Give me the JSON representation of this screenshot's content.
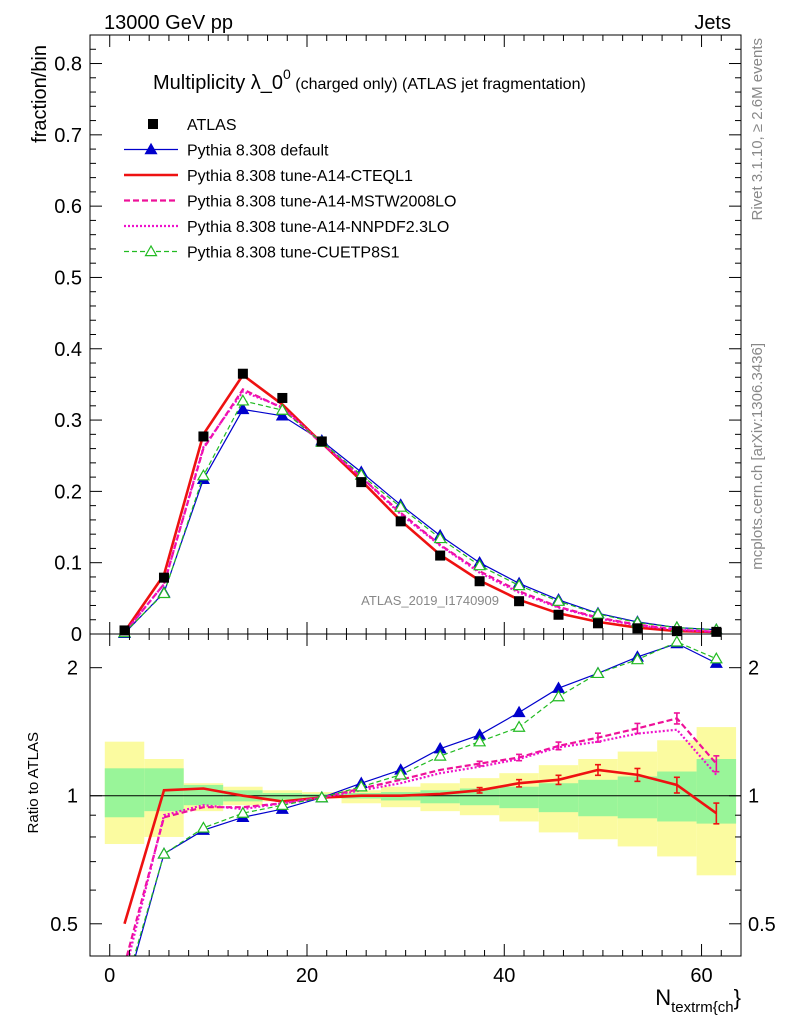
{
  "header": {
    "left": "13000 GeV pp",
    "right": "Jets"
  },
  "side_labels": {
    "top": "Rivet 3.1.10, ≥ 2.6M events",
    "bottom": "mcplots.cern.ch [arXiv:1306.3436]"
  },
  "title_main": "Multiplicity λ_0",
  "title_sup": "0",
  "title_tail": " (charged only) (ATLAS jet fragmentation)",
  "watermark": "ATLAS_2019_I1740909",
  "colors": {
    "atlas": "#000000",
    "default": "#0000cc",
    "cteql1": "#ee1111",
    "mstw": "#ee1199",
    "nnpdf": "#ee11cc",
    "cuetp": "#22bb22",
    "band_inner": "#99f599",
    "band_outer": "#fbfba0"
  },
  "chart_data": [
    {
      "type": "line",
      "ylabel": "fraction/bin",
      "xlim": [
        -2,
        64
      ],
      "ylim": [
        0,
        0.84
      ],
      "yticks": [
        "0",
        "0.1",
        "0.2",
        "0.3",
        "0.4",
        "0.5",
        "0.6",
        "0.7",
        "0.8"
      ],
      "x": [
        1.5,
        5.5,
        9.5,
        13.5,
        17.5,
        21.5,
        25.5,
        29.5,
        33.5,
        37.5,
        41.5,
        45.5,
        49.5,
        53.5,
        57.5,
        61.5
      ],
      "series": [
        {
          "name": "ATLAS",
          "style": "data",
          "values": [
            0.005,
            0.079,
            0.277,
            0.365,
            0.331,
            0.27,
            0.213,
            0.158,
            0.11,
            0.074,
            0.046,
            0.027,
            0.015,
            0.008,
            0.004,
            0.003
          ]
        },
        {
          "name": "Pythia 8.308 default",
          "style": "default",
          "values": [
            0.001,
            0.058,
            0.217,
            0.315,
            0.306,
            0.271,
            0.227,
            0.181,
            0.138,
            0.1,
            0.071,
            0.048,
            0.029,
            0.017,
            0.009,
            0.006
          ]
        },
        {
          "name": "Pythia 8.308 tune-A14-CTEQL1",
          "style": "cteql1",
          "values": [
            0.003,
            0.083,
            0.28,
            0.363,
            0.322,
            0.268,
            0.215,
            0.159,
            0.111,
            0.075,
            0.048,
            0.029,
            0.017,
            0.009,
            0.004,
            0.003
          ]
        },
        {
          "name": "Pythia 8.308 tune-A14-MSTW2008LO",
          "style": "mstw",
          "values": [
            0.002,
            0.07,
            0.26,
            0.343,
            0.317,
            0.267,
            0.22,
            0.17,
            0.125,
            0.088,
            0.06,
            0.038,
            0.023,
            0.013,
            0.006,
            0.003
          ]
        },
        {
          "name": "Pythia 8.308 tune-A14-NNPDF2.3LO",
          "style": "nnpdf",
          "values": [
            0.002,
            0.07,
            0.262,
            0.34,
            0.318,
            0.268,
            0.22,
            0.168,
            0.124,
            0.086,
            0.058,
            0.037,
            0.022,
            0.012,
            0.006,
            0.003
          ]
        },
        {
          "name": "Pythia 8.308 tune-CUETP8S1",
          "style": "cuetp",
          "values": [
            0.002,
            0.057,
            0.222,
            0.327,
            0.314,
            0.269,
            0.223,
            0.178,
            0.134,
            0.096,
            0.068,
            0.046,
            0.028,
            0.016,
            0.009,
            0.006
          ]
        }
      ]
    },
    {
      "type": "line",
      "ylabel": "Ratio to ATLAS",
      "xlabel_main": "N",
      "xlabel_sub": "textrm{ch",
      "xlabel_tail": "}",
      "xlim": [
        -2,
        64
      ],
      "ylim": [
        0.42,
        2.4
      ],
      "ylog": true,
      "yticks": [
        "0.5",
        "1",
        "2"
      ],
      "xticks": [
        "0",
        "20",
        "40",
        "60"
      ],
      "x": [
        1.5,
        5.5,
        9.5,
        13.5,
        17.5,
        21.5,
        25.5,
        29.5,
        33.5,
        37.5,
        41.5,
        45.5,
        49.5,
        53.5,
        57.5,
        61.5
      ],
      "bands": {
        "inner_lo": [
          0.89,
          0.92,
          0.95,
          0.97,
          0.98,
          0.99,
          0.985,
          0.975,
          0.96,
          0.95,
          0.935,
          0.915,
          0.895,
          0.885,
          0.87,
          0.86
        ],
        "inner_hi": [
          1.16,
          1.16,
          1.06,
          1.03,
          1.015,
          1.01,
          1.015,
          1.02,
          1.03,
          1.04,
          1.05,
          1.07,
          1.09,
          1.11,
          1.14,
          1.22
        ],
        "outer_lo": [
          0.77,
          0.8,
          0.92,
          0.95,
          0.97,
          0.985,
          0.96,
          0.94,
          0.92,
          0.9,
          0.87,
          0.82,
          0.79,
          0.76,
          0.72,
          0.65
        ],
        "outer_hi": [
          1.34,
          1.22,
          1.07,
          1.05,
          1.03,
          1.02,
          1.03,
          1.05,
          1.07,
          1.1,
          1.13,
          1.18,
          1.22,
          1.27,
          1.35,
          1.45
        ]
      },
      "series": [
        {
          "name": "Pythia 8.308 default",
          "style": "default",
          "values": [
            0.34,
            0.73,
            0.83,
            0.89,
            0.93,
            0.99,
            1.07,
            1.15,
            1.29,
            1.39,
            1.57,
            1.79,
            1.94,
            2.12,
            2.28,
            2.05
          ]
        },
        {
          "name": "Pythia 8.308 tune-A14-CTEQL1",
          "style": "cteql1",
          "values": [
            0.5,
            1.03,
            1.04,
            1.0,
            0.97,
            0.99,
            1.0,
            1.0,
            1.01,
            1.03,
            1.07,
            1.09,
            1.15,
            1.12,
            1.06,
            0.91
          ]
        },
        {
          "name": "Pythia 8.308 tune-A14-MSTW2008LO",
          "style": "mstw",
          "values": [
            0.4,
            0.89,
            0.94,
            0.94,
            0.96,
            0.99,
            1.04,
            1.09,
            1.15,
            1.19,
            1.23,
            1.31,
            1.37,
            1.44,
            1.52,
            1.19
          ]
        },
        {
          "name": "Pythia 8.308 tune-A14-NNPDF2.3LO",
          "style": "nnpdf",
          "values": [
            0.38,
            0.9,
            0.95,
            0.93,
            0.96,
            0.99,
            1.03,
            1.07,
            1.13,
            1.17,
            1.22,
            1.3,
            1.34,
            1.4,
            1.43,
            1.12
          ]
        },
        {
          "name": "Pythia 8.308 tune-CUETP8S1",
          "style": "cuetp",
          "values": [
            0.35,
            0.73,
            0.84,
            0.91,
            0.95,
            0.99,
            1.05,
            1.12,
            1.24,
            1.34,
            1.45,
            1.71,
            1.94,
            2.09,
            2.3,
            2.1
          ]
        }
      ]
    }
  ]
}
